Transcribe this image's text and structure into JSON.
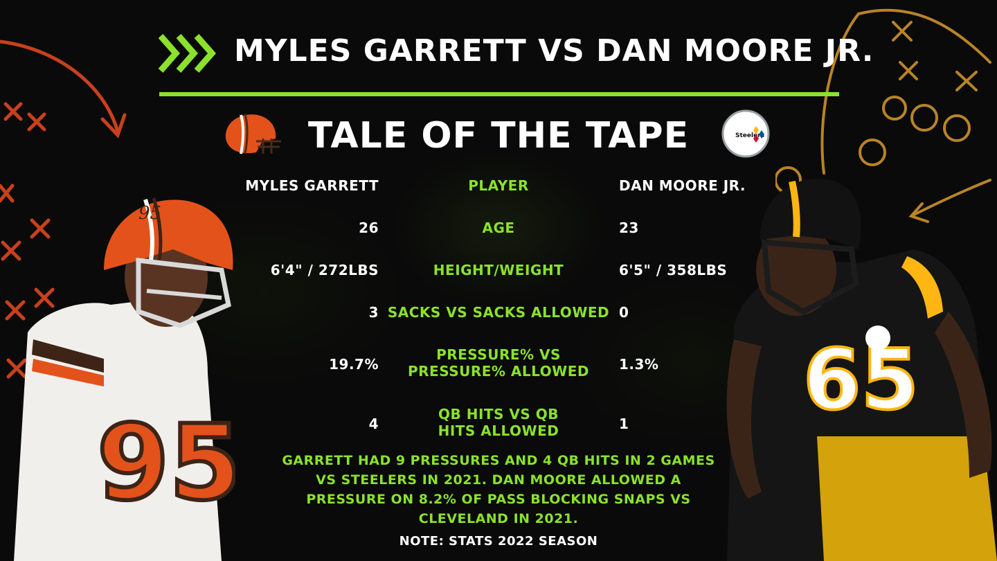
{
  "header": {
    "title": "MYLES GARRETT VS DAN MOORE JR.",
    "subtitle": "TALE OF THE TAPE"
  },
  "colors": {
    "accent": "#8ae22c",
    "browns_orange": "#e3521b",
    "steelers_gold": "#ffb612",
    "play_orange": "#d0431e",
    "play_gold": "#c08a2a"
  },
  "logos": {
    "left": "browns-helmet-logo",
    "right": "steelers-logo",
    "right_text": "Steelers"
  },
  "table": {
    "left_header": "MYLES GARRETT",
    "mid_header": "PLAYER",
    "right_header": "DAN MOORE JR.",
    "rows": [
      {
        "left": "26",
        "mid": "AGE",
        "right": "23"
      },
      {
        "left": "6'4\" / 272LBS",
        "mid": "HEIGHT/WEIGHT",
        "right": "6'5\" / 358LBS"
      },
      {
        "left": "3",
        "mid": "SACKS VS SACKS ALLOWED",
        "right": "0"
      },
      {
        "left": "19.7%",
        "mid": "PRESSURE% VS PRESSURE% ALLOWED",
        "right": "1.3%"
      },
      {
        "left": "4",
        "mid": "QB HITS VS QB HITS ALLOWED",
        "right": "1"
      }
    ]
  },
  "note": "GARRETT HAD 9 PRESSURES AND 4 QB HITS IN 2 GAMES VS STEELERS IN 2021. DAN MOORE ALLOWED A PRESSURE ON 8.2% OF PASS BLOCKING SNAPS VS CLEVELAND IN 2021.",
  "footnote": "NOTE: STATS 2022 SEASON",
  "players": {
    "left_jersey_number": "95",
    "right_jersey_number": "65"
  }
}
